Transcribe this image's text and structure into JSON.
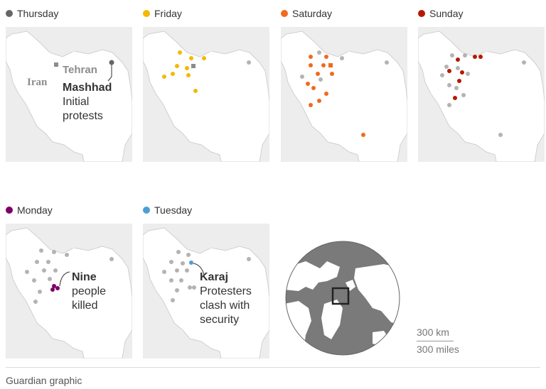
{
  "panels": [
    {
      "day": "Thursday",
      "color": "#666666"
    },
    {
      "day": "Friday",
      "color": "#f5b800"
    },
    {
      "day": "Saturday",
      "color": "#f06a1d"
    },
    {
      "day": "Sunday",
      "color": "#b51800"
    },
    {
      "day": "Monday",
      "color": "#7d0068"
    },
    {
      "day": "Tuesday",
      "color": "#4b9fd5"
    }
  ],
  "thursday_map": {
    "country_label": "Iran",
    "capital_label": "Tehran",
    "city": "Mashhad",
    "note_line1": "Initial",
    "note_line2": "protests"
  },
  "monday_map": {
    "note_line1": "Nine",
    "note_line2": "people",
    "note_line3": "killed"
  },
  "tuesday_map": {
    "city": "Karaj",
    "note_line1": "Protesters",
    "note_line2": "clash with",
    "note_line3": "security"
  },
  "scale": {
    "km": "300 km",
    "miles": "300 miles"
  },
  "credit": "Guardian graphic",
  "colors": {
    "land": "#ffffff",
    "sea": "#ededed",
    "neutral_dot": "#b3b3b3",
    "globe": "#7a7a7a"
  }
}
